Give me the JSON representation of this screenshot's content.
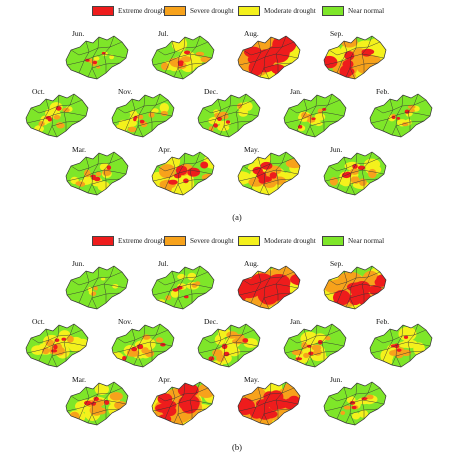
{
  "colors": {
    "extreme": "#ee1c1c",
    "severe": "#f7a21b",
    "moderate": "#f4f11c",
    "normal": "#7ee629",
    "border": "#333333"
  },
  "legend": [
    {
      "key": "extreme",
      "label": "Extreme drought"
    },
    {
      "key": "severe",
      "label": "Severe drought"
    },
    {
      "key": "moderate",
      "label": "Moderate drought"
    },
    {
      "key": "normal",
      "label": "Near normal"
    }
  ],
  "panels": [
    {
      "caption": "(a)",
      "maps": [
        {
          "month": "Jun.",
          "drought": [
            0.02,
            0.04,
            0.06
          ]
        },
        {
          "month": "Jul.",
          "drought": [
            0.05,
            0.25,
            0.45
          ]
        },
        {
          "month": "Aug.",
          "drought": [
            0.55,
            0.8,
            0.9
          ]
        },
        {
          "month": "Sep.",
          "drought": [
            0.35,
            0.6,
            0.8
          ]
        },
        {
          "month": "Oct.",
          "drought": [
            0.03,
            0.15,
            0.3
          ]
        },
        {
          "month": "Nov.",
          "drought": [
            0.02,
            0.12,
            0.25
          ]
        },
        {
          "month": "Dec.",
          "drought": [
            0.02,
            0.12,
            0.28
          ]
        },
        {
          "month": "Jan.",
          "drought": [
            0.02,
            0.1,
            0.22
          ]
        },
        {
          "month": "Feb.",
          "drought": [
            0.02,
            0.08,
            0.2
          ]
        },
        {
          "month": "Mar.",
          "drought": [
            0.04,
            0.14,
            0.3
          ]
        },
        {
          "month": "Apr.",
          "drought": [
            0.2,
            0.35,
            0.6
          ]
        },
        {
          "month": "May.",
          "drought": [
            0.22,
            0.38,
            0.62
          ]
        },
        {
          "month": "Jun.",
          "drought": [
            0.1,
            0.2,
            0.35
          ]
        }
      ]
    },
    {
      "caption": "(b)",
      "maps": [
        {
          "month": "Jun.",
          "drought": [
            0.0,
            0.02,
            0.05
          ]
        },
        {
          "month": "Jul.",
          "drought": [
            0.02,
            0.08,
            0.2
          ]
        },
        {
          "month": "Aug.",
          "drought": [
            0.7,
            0.85,
            0.92
          ]
        },
        {
          "month": "Sep.",
          "drought": [
            0.45,
            0.7,
            0.85
          ]
        },
        {
          "month": "Oct.",
          "drought": [
            0.05,
            0.2,
            0.4
          ]
        },
        {
          "month": "Nov.",
          "drought": [
            0.05,
            0.2,
            0.42
          ]
        },
        {
          "month": "Dec.",
          "drought": [
            0.05,
            0.2,
            0.45
          ]
        },
        {
          "month": "Jan.",
          "drought": [
            0.04,
            0.18,
            0.42
          ]
        },
        {
          "month": "Feb.",
          "drought": [
            0.04,
            0.18,
            0.4
          ]
        },
        {
          "month": "Mar.",
          "drought": [
            0.1,
            0.3,
            0.5
          ]
        },
        {
          "month": "Apr.",
          "drought": [
            0.45,
            0.7,
            0.85
          ]
        },
        {
          "month": "May.",
          "drought": [
            0.55,
            0.75,
            0.88
          ]
        },
        {
          "month": "Jun.",
          "drought": [
            0.03,
            0.1,
            0.25
          ]
        }
      ]
    }
  ]
}
